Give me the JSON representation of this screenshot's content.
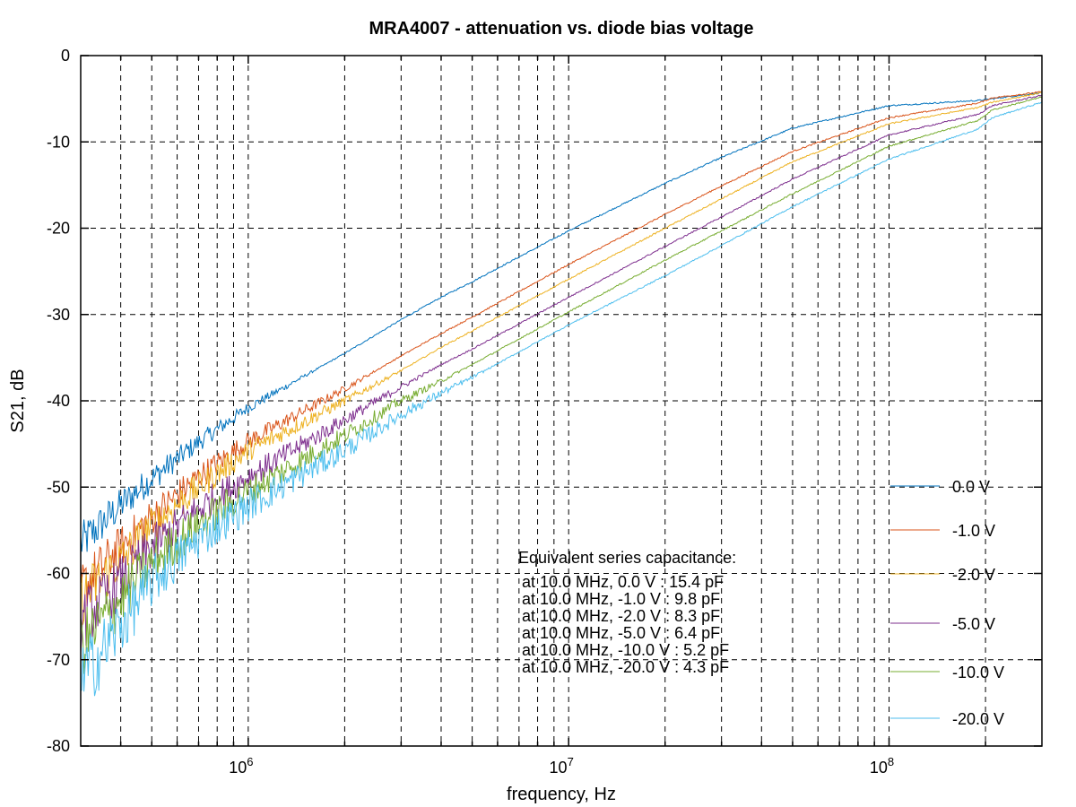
{
  "chart_data": {
    "type": "line",
    "title": "MRA4007 - attenuation vs. diode bias voltage",
    "xlabel": "frequency, Hz",
    "ylabel": "S21, dB",
    "xscale": "log",
    "xlim": [
      300000.0,
      300000000.0
    ],
    "ylim": [
      -80,
      0
    ],
    "grid": true,
    "legend_position": "bottom-right",
    "y_ticks": [
      "0",
      "-10",
      "-20",
      "-30",
      "-40",
      "-50",
      "-60",
      "-70",
      "-80"
    ],
    "x_ticks": [
      {
        "base": "10",
        "exp": "6"
      },
      {
        "base": "10",
        "exp": "7"
      },
      {
        "base": "10",
        "exp": "8"
      }
    ],
    "annotation": {
      "heading": "Equivalent series capacitance:",
      "lines": [
        "at 10.0 MHz, 0.0 V : 15.4 pF",
        "at 10.0 MHz, -1.0 V : 9.8 pF",
        "at 10.0 MHz, -2.0 V : 8.3 pF",
        "at 10.0 MHz, -5.0 V : 6.4 pF",
        "at 10.0 MHz, -10.0 V : 5.2 pF",
        "at 10.0 MHz, -20.0 V : 4.3 pF"
      ]
    },
    "frequencies": [
      300000.0,
      400000.0,
      500000.0,
      700000.0,
      1000000.0,
      2000000.0,
      3000000.0,
      4000000.0,
      5000000.0,
      10000000.0,
      20000000.0,
      30000000.0,
      50000000.0,
      100000000.0,
      190000000.0,
      210000000.0,
      300000000.0
    ],
    "series": [
      {
        "name": "0.0 V",
        "color": "#0072bd",
        "values": [
          -56.6,
          -52.1,
          -49.0,
          -44.8,
          -40.8,
          -34.5,
          -30.6,
          -28.0,
          -26.2,
          -20.3,
          -14.8,
          -11.8,
          -8.4,
          -5.8,
          -5.2,
          -5.0,
          -4.3
        ]
      },
      {
        "name": "-1.0 V",
        "color": "#d95319",
        "values": [
          -61.8,
          -57.0,
          -53.5,
          -48.8,
          -44.7,
          -38.6,
          -34.8,
          -32.2,
          -30.3,
          -24.2,
          -18.4,
          -15.1,
          -11.1,
          -7.2,
          -5.5,
          -4.9,
          -4.2
        ]
      },
      {
        "name": "-2.0 V",
        "color": "#edb120",
        "values": [
          -63.0,
          -58.5,
          -54.5,
          -50.0,
          -45.8,
          -40.0,
          -36.5,
          -33.8,
          -31.9,
          -25.9,
          -20.0,
          -16.6,
          -12.3,
          -7.9,
          -6.0,
          -5.4,
          -4.3
        ]
      },
      {
        "name": "-5.0 V",
        "color": "#7e2f8e",
        "values": [
          -65.6,
          -61.0,
          -57.0,
          -52.5,
          -48.8,
          -42.2,
          -38.4,
          -35.8,
          -34.0,
          -28.0,
          -22.1,
          -18.7,
          -14.3,
          -9.2,
          -6.8,
          -5.8,
          -4.6
        ]
      },
      {
        "name": "-10.0 V",
        "color": "#77ac30",
        "values": [
          -68.4,
          -63.0,
          -58.7,
          -54.3,
          -50.5,
          -44.0,
          -40.0,
          -37.7,
          -35.8,
          -29.7,
          -23.7,
          -20.3,
          -16.0,
          -10.5,
          -7.5,
          -6.3,
          -4.8
        ]
      },
      {
        "name": "-20.0 V",
        "color": "#4dbeee",
        "values": [
          -72.5,
          -66.0,
          -61.0,
          -56.0,
          -52.1,
          -45.7,
          -41.6,
          -39.1,
          -37.3,
          -31.2,
          -25.5,
          -22.0,
          -17.5,
          -12.0,
          -8.5,
          -7.2,
          -5.4
        ]
      }
    ]
  }
}
